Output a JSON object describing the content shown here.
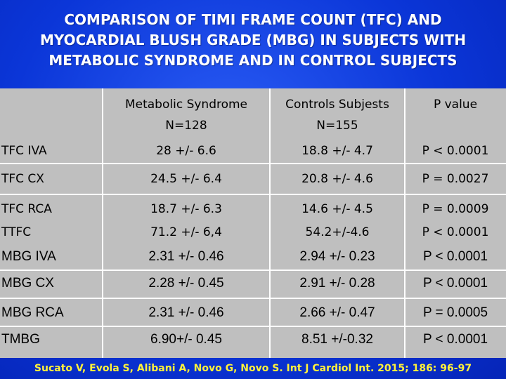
{
  "title_lines": [
    "COMPARISON OF TIMI FRAME COUNT (TFC) AND",
    "MYOCARDIAL BLUSH GRADE (MBG) IN SUBJECTS WITH",
    "METABOLIC  SYNDROME  AND  IN CONTROL SUBJECTS"
  ],
  "header": {
    "col1_line1": "Metabolic Syndrome",
    "col1_line2": "N=128",
    "col2_line1": "Controls Subjests",
    "col2_line2": "N=155",
    "col3": "P value"
  },
  "rows": [
    {
      "label": "TFC IVA",
      "ms": "28 +/- 6.6",
      "ctrl": "18.8 +/- 4.7",
      "p": "P < 0.0001"
    },
    {
      "label": "TFC CX",
      "ms": "24.5 +/- 6.4",
      "ctrl": "20.8 +/- 4.6",
      "p": "P = 0.0027"
    },
    {
      "label": "TFC RCA",
      "ms": "18.7 +/- 6.3",
      "ctrl": "14.6 +/- 4.5",
      "p": "P = 0.0009"
    },
    {
      "label": "TTFC",
      "ms": "71.2 +/- 6,4",
      "ctrl": "54.2+/-4.6",
      "p": "P < 0.0001"
    },
    {
      "label": "MBG IVA",
      "ms": "2.31 +/- 0.46",
      "ctrl": "2.94 +/- 0.23",
      "p": "P < 0.0001"
    },
    {
      "label": "MBG CX",
      "ms": "2.28 +/- 0.45",
      "ctrl": "2.91 +/- 0.28",
      "p": "P < 0.0001"
    },
    {
      "label": "MBG RCA",
      "ms": "2.31 +/- 0.46",
      "ctrl": "2.66 +/- 0.47",
      "p": "P = 0.0005"
    },
    {
      "label": "TMBG",
      "ms": "6.90+/- 0.45",
      "ctrl": "8.51 +/-0.32",
      "p": "P < 0.0001"
    }
  ],
  "citation": "Sucato V, Evola S, Alibani A, Novo G, Novo S. Int J Cardiol Int. 2015; 186:  96-97",
  "colors": {
    "background": "#0a34d6",
    "table": "#bfbfbf",
    "title_text": "#ffffff",
    "citation_text": "#fff23a"
  }
}
